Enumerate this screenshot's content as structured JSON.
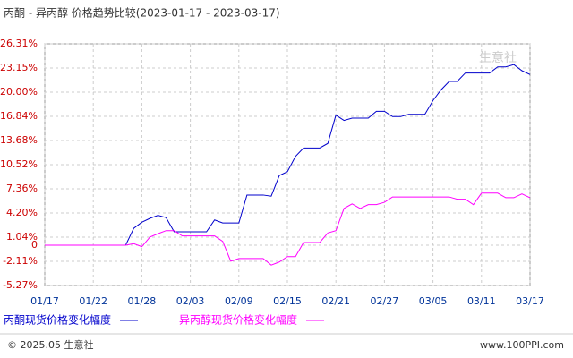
{
  "chart_data": {
    "type": "line",
    "title": "丙酮 - 异丙醇 价格趋势比较(2023-01-17 - 2023-03-17)",
    "categories": [
      "01/17",
      null,
      null,
      null,
      null,
      null,
      "01/22",
      null,
      null,
      null,
      null,
      null,
      "01/28",
      null,
      null,
      null,
      null,
      null,
      "02/03",
      null,
      null,
      null,
      null,
      null,
      "02/09",
      null,
      null,
      null,
      null,
      null,
      "02/15",
      null,
      null,
      null,
      null,
      null,
      "02/21",
      null,
      null,
      null,
      null,
      null,
      "02/27",
      null,
      null,
      null,
      null,
      null,
      "03/05",
      null,
      null,
      null,
      null,
      null,
      "03/11",
      null,
      null,
      null,
      null,
      null,
      "03/17"
    ],
    "series": [
      {
        "name": "丙酮现货价格变化幅度",
        "color": "#0000cc",
        "values": [
          0,
          0,
          0,
          0,
          0,
          0,
          0,
          0,
          0,
          0,
          0,
          2.2,
          3.0,
          3.5,
          3.9,
          3.6,
          1.75,
          1.75,
          1.75,
          1.75,
          1.75,
          3.3,
          2.9,
          2.9,
          2.9,
          6.55,
          6.55,
          6.55,
          6.4,
          9.1,
          9.6,
          11.6,
          12.7,
          12.7,
          12.7,
          13.3,
          17.0,
          16.3,
          16.6,
          16.6,
          16.6,
          17.5,
          17.5,
          16.8,
          16.8,
          17.1,
          17.1,
          17.1,
          18.9,
          20.3,
          21.4,
          21.4,
          22.5,
          22.5,
          22.5,
          22.5,
          23.3,
          23.3,
          23.6,
          22.8,
          22.3
        ]
      },
      {
        "name": "异丙醇现货价格变化幅度",
        "color": "#ff00ff",
        "values": [
          0,
          0,
          0,
          0,
          0,
          0,
          0,
          0,
          0,
          0,
          0,
          0.2,
          -0.2,
          1.05,
          1.5,
          1.9,
          1.9,
          1.2,
          1.2,
          1.2,
          1.2,
          1.2,
          0.5,
          -2.1,
          -1.75,
          -1.75,
          -1.75,
          -1.75,
          -2.6,
          -2.2,
          -1.5,
          -1.5,
          0.35,
          0.35,
          0.35,
          1.6,
          1.9,
          4.8,
          5.4,
          4.8,
          5.3,
          5.3,
          5.6,
          6.3,
          6.3,
          6.3,
          6.3,
          6.3,
          6.3,
          6.3,
          6.3,
          6.0,
          6.0,
          5.3,
          6.8,
          6.8,
          6.8,
          6.2,
          6.2,
          6.7,
          6.2
        ]
      }
    ],
    "ylim": [
      -5.27,
      26.31
    ],
    "yticks": [
      {
        "value": -5.27,
        "label": "-5.27%"
      },
      {
        "value": -2.11,
        "label": "-2.11%"
      },
      0,
      {
        "value": 1.04,
        "label": "1.04%"
      },
      {
        "value": 4.2,
        "label": "4.20%"
      },
      {
        "value": 7.36,
        "label": "7.36%"
      },
      {
        "value": 10.52,
        "label": "10.52%"
      },
      {
        "value": 13.68,
        "label": "13.68%"
      },
      {
        "value": 16.84,
        "label": "16.84%"
      },
      {
        "value": 20.0,
        "label": "20.00%"
      },
      {
        "value": 23.15,
        "label": "23.15%"
      },
      {
        "value": 26.31,
        "label": "26.31%"
      }
    ],
    "grid": true,
    "watermark": "生意社",
    "footer_left": "© 2025.05 生意社",
    "footer_right": "www.100PPI.com"
  }
}
